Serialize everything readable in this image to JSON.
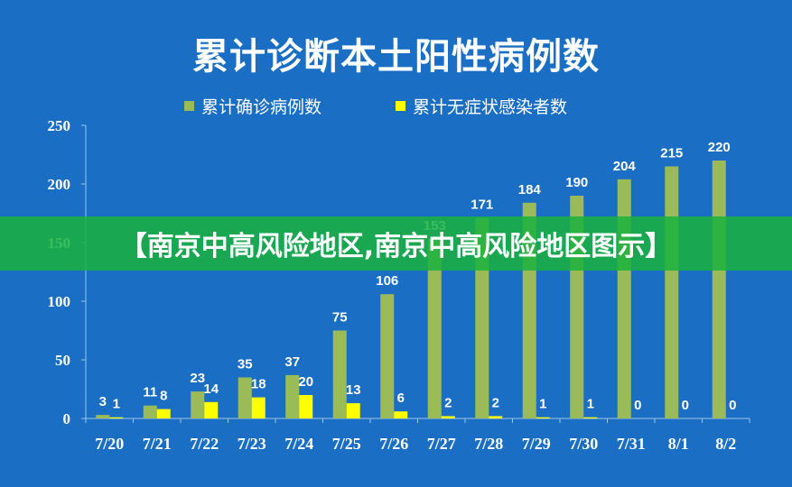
{
  "chart_data": {
    "type": "bar",
    "title": "累计诊断本土阳性病例数",
    "categories": [
      "7/20",
      "7/21",
      "7/22",
      "7/23",
      "7/24",
      "7/25",
      "7/26",
      "7/27",
      "7/28",
      "7/29",
      "7/30",
      "7/31",
      "8/1",
      "8/2"
    ],
    "series": [
      {
        "name": "累计确诊病例数",
        "color": "#9bbb59",
        "values": [
          3,
          11,
          23,
          35,
          37,
          75,
          106,
          153,
          171,
          184,
          190,
          204,
          215,
          220
        ]
      },
      {
        "name": "累计无症状感染者数",
        "color": "#ffff00",
        "values": [
          1,
          8,
          14,
          18,
          20,
          13,
          6,
          2,
          2,
          1,
          1,
          0,
          0,
          0
        ]
      }
    ],
    "ylim": [
      0,
      250
    ],
    "yticks": [
      0,
      50,
      100,
      150,
      200,
      250
    ],
    "legend_position": "top",
    "grid": false
  },
  "banner": {
    "text": "【南京中高风险地区,南京中高风险地区图示】"
  },
  "colors": {
    "background": "#1a6fc4",
    "axis": "#9cc3ea",
    "banner": "#1ab23e"
  }
}
